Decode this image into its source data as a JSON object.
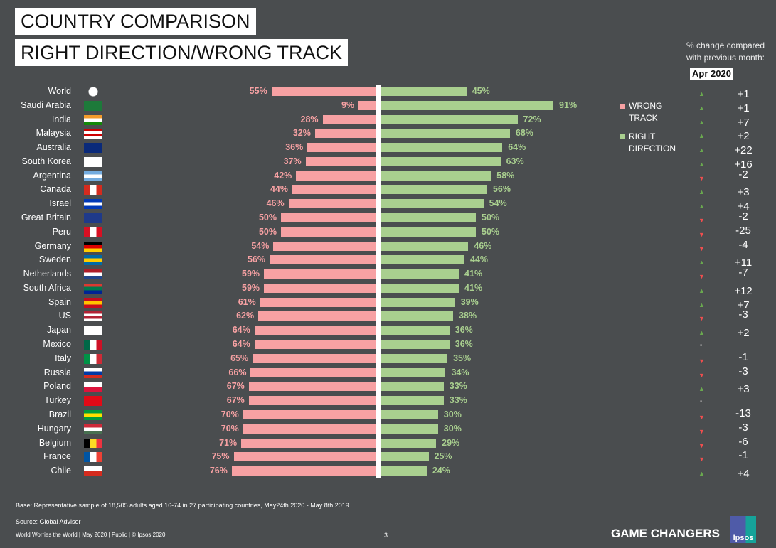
{
  "title1": "COUNTRY COMPARISON",
  "title2": "RIGHT DIRECTION/WRONG TRACK",
  "change_header": "% change compared with previous month:",
  "change_month": "Apr 2020",
  "chart_data": {
    "type": "bar",
    "orientation": "diverging-horizontal",
    "xlim": [
      0,
      100
    ],
    "legend_position": "right",
    "categories": [
      "World",
      "Saudi Arabia",
      "India",
      "Malaysia",
      "Australia",
      "South Korea",
      "Argentina",
      "Canada",
      "Israel",
      "Great Britain",
      "Peru",
      "Germany",
      "Sweden",
      "Netherlands",
      "South Africa",
      "Spain",
      "US",
      "Japan",
      "Mexico",
      "Italy",
      "Russia",
      "Poland",
      "Turkey",
      "Brazil",
      "Hungary",
      "Belgium",
      "France",
      "Chile"
    ],
    "series": [
      {
        "name": "WRONG TRACK",
        "color": "#f7a1a3",
        "values": [
          55,
          9,
          28,
          32,
          36,
          37,
          42,
          44,
          46,
          50,
          50,
          54,
          56,
          59,
          59,
          61,
          62,
          64,
          64,
          65,
          66,
          67,
          67,
          70,
          70,
          71,
          75,
          76
        ],
        "labels": [
          "55%",
          "9%",
          "28%",
          "32%",
          "36%",
          "37%",
          "42%",
          "44%",
          "46%",
          "50%",
          "50%",
          "54%",
          "56%",
          "59%",
          "59%",
          "61%",
          "62%",
          "64%",
          "64%",
          "65%",
          "66%",
          "67%",
          "67%",
          "70%",
          "70%",
          "71%",
          "75%",
          "76%"
        ]
      },
      {
        "name": "RIGHT DIRECTION",
        "color": "#a9cf8f",
        "values": [
          45,
          91,
          72,
          68,
          64,
          63,
          58,
          56,
          54,
          50,
          50,
          46,
          44,
          41,
          41,
          39,
          38,
          36,
          36,
          35,
          34,
          33,
          33,
          30,
          30,
          29,
          25,
          24
        ],
        "labels": [
          "45%",
          "91%",
          "72%",
          "68%",
          "64%",
          "63%",
          "58%",
          "56%",
          "54%",
          "50%",
          "50%",
          "46%",
          "44%",
          "41%",
          "41%",
          "39%",
          "38%",
          "36%",
          "36%",
          "35%",
          "34%",
          "33%",
          "33%",
          "30%",
          "30%",
          "29%",
          "25%",
          "24%"
        ]
      }
    ],
    "changes": [
      "+1",
      "+1",
      "+7",
      "+2",
      "+22",
      "+16",
      "-2",
      "+3",
      "+4",
      "-2",
      "-25",
      "-4",
      "+11",
      "-7",
      "+12",
      "+7",
      "-3",
      "+2",
      "",
      "-1",
      "-3",
      "+3",
      "",
      "-13",
      "-3",
      "-6",
      "-1",
      "+4"
    ],
    "change_direction": [
      "up",
      "up",
      "up",
      "up",
      "up",
      "up",
      "down",
      "up",
      "up",
      "down",
      "down",
      "down",
      "up",
      "down",
      "up",
      "up",
      "down",
      "up",
      "same",
      "down",
      "down",
      "up",
      "same",
      "down",
      "down",
      "down",
      "down",
      "up"
    ]
  },
  "legend": {
    "wrong": [
      "WRONG",
      "TRACK"
    ],
    "right": [
      "RIGHT",
      "DIRECTION"
    ]
  },
  "colors": {
    "up": "#6aa84f",
    "down": "#f04e4e",
    "same": "#999999"
  },
  "flags": [
    [
      "globe"
    ],
    [
      "h",
      "#1d7a3a"
    ],
    [
      "h",
      "#f39a2a",
      "#ffffff",
      "#138808"
    ],
    [
      "h",
      "#cc0001",
      "#ffffff",
      "#cc0001",
      "#ffffff"
    ],
    [
      "h",
      "#0a2a7a"
    ],
    [
      "h",
      "#ffffff"
    ],
    [
      "h",
      "#74acdf",
      "#ffffff",
      "#74acdf"
    ],
    [
      "v",
      "#d52b1e",
      "#ffffff",
      "#d52b1e"
    ],
    [
      "h",
      "#0038b8",
      "#ffffff",
      "#0038b8"
    ],
    [
      "h",
      "#1f3a8a"
    ],
    [
      "v",
      "#d91023",
      "#ffffff",
      "#d91023"
    ],
    [
      "h",
      "#000000",
      "#dd0000",
      "#ffce00"
    ],
    [
      "h",
      "#006aa7",
      "#fecc00",
      "#006aa7"
    ],
    [
      "h",
      "#ae1c28",
      "#ffffff",
      "#21468b"
    ],
    [
      "h",
      "#de3831",
      "#007a4d",
      "#002395"
    ],
    [
      "h",
      "#c60b1e",
      "#ffc400",
      "#c60b1e"
    ],
    [
      "h",
      "#b22234",
      "#ffffff",
      "#b22234",
      "#ffffff"
    ],
    [
      "h",
      "#ffffff"
    ],
    [
      "v",
      "#006847",
      "#ffffff",
      "#ce1126"
    ],
    [
      "v",
      "#009246",
      "#ffffff",
      "#ce2b37"
    ],
    [
      "h",
      "#ffffff",
      "#0039a6",
      "#d52b1e"
    ],
    [
      "h",
      "#ffffff",
      "#dc143c"
    ],
    [
      "h",
      "#e30a17"
    ],
    [
      "h",
      "#009c3b",
      "#ffdf00",
      "#009c3b"
    ],
    [
      "h",
      "#ce2939",
      "#ffffff",
      "#477050"
    ],
    [
      "v",
      "#000000",
      "#fdda24",
      "#ef3340"
    ],
    [
      "v",
      "#0055a4",
      "#ffffff",
      "#ef4135"
    ],
    [
      "h",
      "#ffffff",
      "#d52b1e"
    ]
  ],
  "footer": {
    "base": "Base: Representative sample of 18,505 adults aged 16-74 in 27 participating countries, May24th 2020 - May 8th 2019.",
    "source": "Source: Global Advisor",
    "meta": "World Worries the World | May 2020 | Public | © Ipsos 2020",
    "page": "3",
    "tagline": "GAME CHANGERS",
    "logo": "Ipsos"
  }
}
